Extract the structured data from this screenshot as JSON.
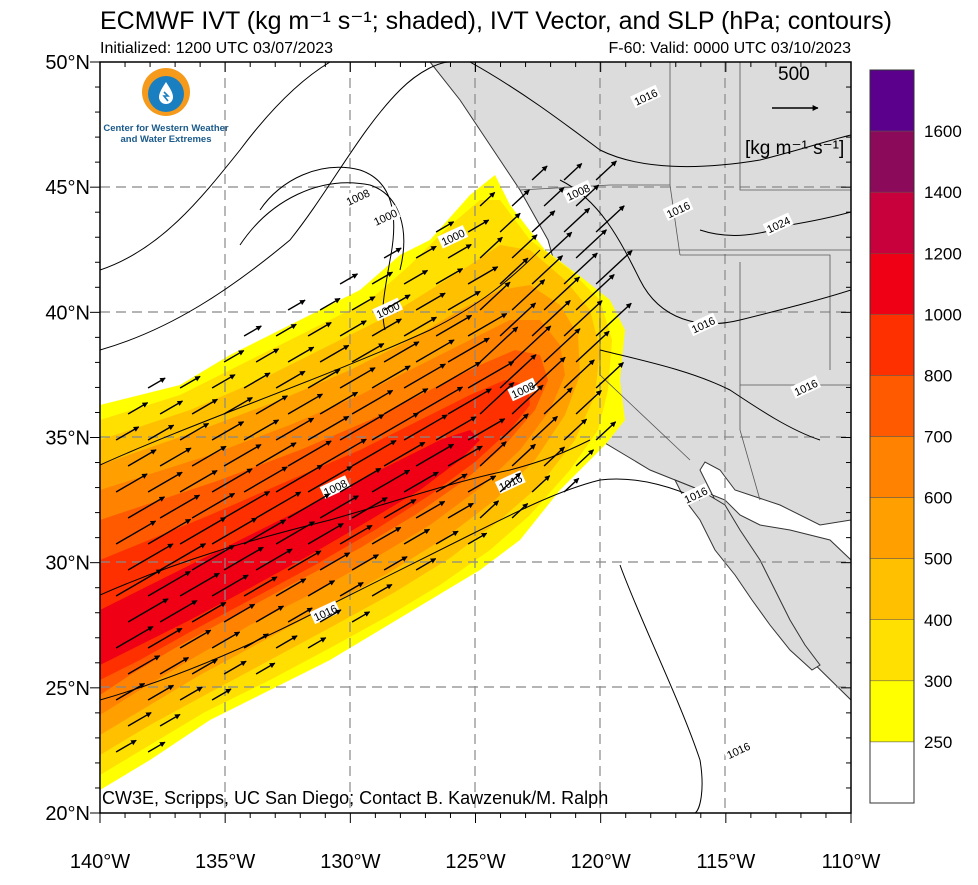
{
  "header": {
    "title": "ECMWF IVT (kg m⁻¹ s⁻¹; shaded), IVT Vector, and SLP (hPa; contours)",
    "initialized": "Initialized: 1200 UTC 03/07/2023",
    "valid": "F-60: Valid: 0000 UTC 03/10/2023"
  },
  "logo": {
    "org_line1": "Center for Western Weather",
    "org_line2": "and Water Extremes",
    "icon": "cw3e-water-drop-logo-icon"
  },
  "credit": "CW3E, Scripps, UC San Diego; Contact B. Kawzenuk/M. Ralph",
  "reference_vector": {
    "value": "500",
    "unit": "[kg m⁻¹ s⁻¹]"
  },
  "axes": {
    "lat_labels": [
      "50°N",
      "45°N",
      "40°N",
      "35°N",
      "30°N",
      "25°N",
      "20°N"
    ],
    "lon_labels": [
      "140°W",
      "135°W",
      "130°W",
      "125°W",
      "120°W",
      "115°W",
      "110°W"
    ],
    "lat_range": [
      20,
      50
    ],
    "lon_range": [
      -140,
      -110
    ]
  },
  "colorbar": {
    "levels": [
      "1600",
      "1400",
      "1200",
      "1000",
      "800",
      "700",
      "600",
      "500",
      "400",
      "300",
      "250"
    ],
    "colors": [
      "#5a008c",
      "#8c0a5a",
      "#c8003c",
      "#f00014",
      "#ff3000",
      "#ff5a00",
      "#ff8200",
      "#ffa000",
      "#ffc000",
      "#ffe000",
      "#ffff00",
      "#ffffff"
    ]
  },
  "slp_contour_labels": [
    {
      "text": "1016",
      "lon": -118.2,
      "lat": 48.6
    },
    {
      "text": "1008",
      "lon": -129.7,
      "lat": 44.6
    },
    {
      "text": "1000",
      "lon": -128.6,
      "lat": 43.8
    },
    {
      "text": "1000",
      "lon": -125.9,
      "lat": 43.0
    },
    {
      "text": "1008",
      "lon": -120.9,
      "lat": 44.8
    },
    {
      "text": "1016",
      "lon": -116.9,
      "lat": 44.1
    },
    {
      "text": "1024",
      "lon": -112.9,
      "lat": 43.5
    },
    {
      "text": "1000",
      "lon": -128.5,
      "lat": 40.1
    },
    {
      "text": "1016",
      "lon": -115.9,
      "lat": 39.5
    },
    {
      "text": "1016",
      "lon": -111.8,
      "lat": 37.0
    },
    {
      "text": "1008",
      "lon": -123.1,
      "lat": 36.9
    },
    {
      "text": "1016",
      "lon": -116.2,
      "lat": 32.7
    },
    {
      "text": "1008",
      "lon": -130.6,
      "lat": 33.0
    },
    {
      "text": "1016",
      "lon": -123.6,
      "lat": 33.2
    },
    {
      "text": "1016",
      "lon": -131.0,
      "lat": 28.0
    },
    {
      "text": "1016",
      "lon": -114.5,
      "lat": 22.5
    }
  ]
}
